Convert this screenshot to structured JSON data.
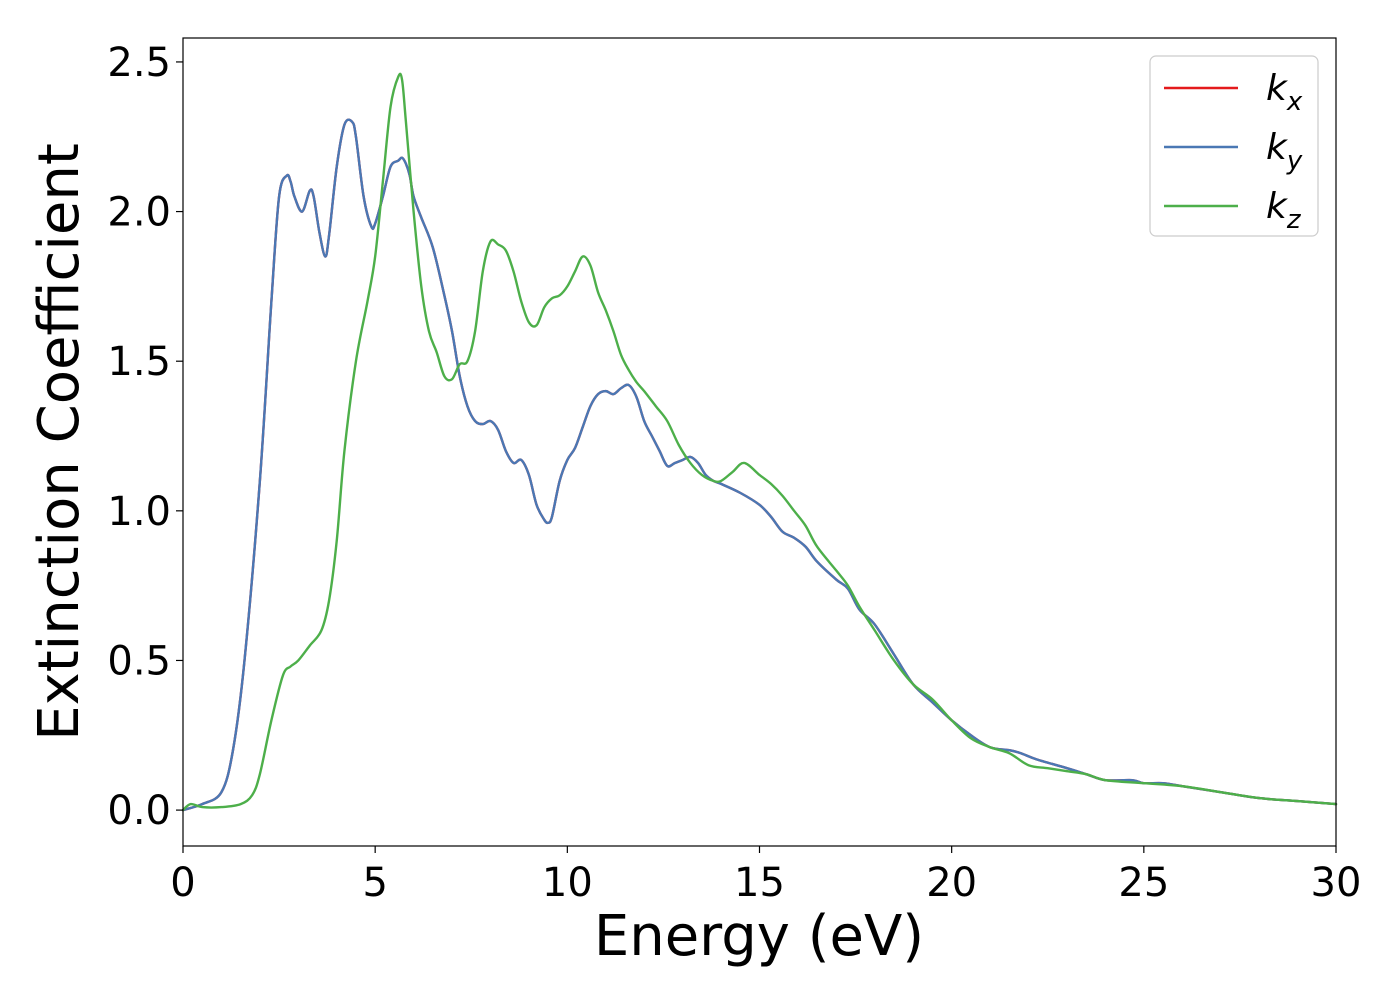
{
  "chart_data": {
    "type": "line",
    "title": "",
    "xlabel": "Energy (eV)",
    "ylabel": "Extinction Coefficient",
    "xlim": [
      0,
      30
    ],
    "ylim": [
      -0.12,
      2.58
    ],
    "xticks": [
      0,
      5,
      10,
      15,
      20,
      25,
      30
    ],
    "xtick_labels": [
      "0",
      "5",
      "10",
      "15",
      "20",
      "25",
      "30"
    ],
    "yticks": [
      0.0,
      0.5,
      1.0,
      1.5,
      2.0,
      2.5
    ],
    "ytick_labels": [
      "0.0",
      "0.5",
      "1.0",
      "1.5",
      "2.0",
      "2.5"
    ],
    "grid": false,
    "legend_position": "top-right",
    "series": [
      {
        "name": "kx",
        "label_base": "k",
        "label_sub": "x",
        "color": "#e41a1c",
        "x": [
          0,
          0.5,
          1.0,
          1.3,
          1.6,
          2.0,
          2.3,
          2.5,
          2.7,
          2.8,
          2.9,
          3.1,
          3.3,
          3.4,
          3.55,
          3.7,
          3.8,
          4.0,
          4.2,
          4.4,
          4.5,
          4.7,
          4.9,
          5.0,
          5.2,
          5.4,
          5.6,
          5.7,
          5.8,
          5.9,
          6.0,
          6.2,
          6.5,
          6.8,
          7.0,
          7.2,
          7.4,
          7.6,
          7.8,
          8.0,
          8.2,
          8.4,
          8.6,
          8.8,
          9.0,
          9.2,
          9.4,
          9.5,
          9.6,
          9.8,
          10.0,
          10.2,
          10.4,
          10.6,
          10.8,
          11.0,
          11.2,
          11.4,
          11.6,
          11.8,
          12.0,
          12.2,
          12.4,
          12.6,
          12.8,
          13.0,
          13.2,
          13.4,
          13.6,
          13.8,
          14.0,
          14.5,
          15.0,
          15.3,
          15.6,
          15.9,
          16.2,
          16.5,
          17.0,
          17.3,
          17.6,
          18.0,
          18.5,
          19.0,
          19.5,
          20.0,
          20.5,
          21.0,
          21.5,
          21.8,
          22.2,
          23.0,
          23.5,
          24.0,
          24.7,
          25.0,
          25.5,
          26.0,
          26.5,
          27.0,
          28.0,
          29.0,
          30.0
        ],
        "y": [
          0.0,
          0.02,
          0.06,
          0.2,
          0.5,
          1.1,
          1.7,
          2.05,
          2.12,
          2.1,
          2.05,
          2.0,
          2.07,
          2.05,
          1.93,
          1.85,
          1.92,
          2.15,
          2.29,
          2.3,
          2.25,
          2.05,
          1.95,
          1.96,
          2.05,
          2.15,
          2.17,
          2.18,
          2.16,
          2.12,
          2.05,
          1.98,
          1.88,
          1.72,
          1.6,
          1.45,
          1.35,
          1.3,
          1.29,
          1.3,
          1.27,
          1.2,
          1.16,
          1.17,
          1.12,
          1.02,
          0.97,
          0.96,
          0.98,
          1.1,
          1.17,
          1.21,
          1.28,
          1.35,
          1.39,
          1.4,
          1.39,
          1.41,
          1.42,
          1.38,
          1.3,
          1.25,
          1.2,
          1.15,
          1.16,
          1.17,
          1.18,
          1.16,
          1.12,
          1.1,
          1.09,
          1.06,
          1.02,
          0.98,
          0.93,
          0.91,
          0.88,
          0.83,
          0.77,
          0.74,
          0.67,
          0.62,
          0.52,
          0.42,
          0.36,
          0.3,
          0.25,
          0.21,
          0.2,
          0.19,
          0.17,
          0.14,
          0.12,
          0.1,
          0.1,
          0.09,
          0.09,
          0.08,
          0.07,
          0.06,
          0.04,
          0.03,
          0.02
        ]
      },
      {
        "name": "ky",
        "label_base": "k",
        "label_sub": "y",
        "color": "#4a78b4",
        "x": [
          0,
          0.5,
          1.0,
          1.3,
          1.6,
          2.0,
          2.3,
          2.5,
          2.7,
          2.8,
          2.9,
          3.1,
          3.3,
          3.4,
          3.55,
          3.7,
          3.8,
          4.0,
          4.2,
          4.4,
          4.5,
          4.7,
          4.9,
          5.0,
          5.2,
          5.4,
          5.6,
          5.7,
          5.8,
          5.9,
          6.0,
          6.2,
          6.5,
          6.8,
          7.0,
          7.2,
          7.4,
          7.6,
          7.8,
          8.0,
          8.2,
          8.4,
          8.6,
          8.8,
          9.0,
          9.2,
          9.4,
          9.5,
          9.6,
          9.8,
          10.0,
          10.2,
          10.4,
          10.6,
          10.8,
          11.0,
          11.2,
          11.4,
          11.6,
          11.8,
          12.0,
          12.2,
          12.4,
          12.6,
          12.8,
          13.0,
          13.2,
          13.4,
          13.6,
          13.8,
          14.0,
          14.5,
          15.0,
          15.3,
          15.6,
          15.9,
          16.2,
          16.5,
          17.0,
          17.3,
          17.6,
          18.0,
          18.5,
          19.0,
          19.5,
          20.0,
          20.5,
          21.0,
          21.5,
          21.8,
          22.2,
          23.0,
          23.5,
          24.0,
          24.7,
          25.0,
          25.5,
          26.0,
          26.5,
          27.0,
          28.0,
          29.0,
          30.0
        ],
        "y": [
          0.0,
          0.02,
          0.06,
          0.2,
          0.5,
          1.1,
          1.7,
          2.05,
          2.12,
          2.1,
          2.05,
          2.0,
          2.07,
          2.05,
          1.93,
          1.85,
          1.92,
          2.15,
          2.29,
          2.3,
          2.25,
          2.05,
          1.95,
          1.96,
          2.05,
          2.15,
          2.17,
          2.18,
          2.16,
          2.12,
          2.05,
          1.98,
          1.88,
          1.72,
          1.6,
          1.45,
          1.35,
          1.3,
          1.29,
          1.3,
          1.27,
          1.2,
          1.16,
          1.17,
          1.12,
          1.02,
          0.97,
          0.96,
          0.98,
          1.1,
          1.17,
          1.21,
          1.28,
          1.35,
          1.39,
          1.4,
          1.39,
          1.41,
          1.42,
          1.38,
          1.3,
          1.25,
          1.2,
          1.15,
          1.16,
          1.17,
          1.18,
          1.16,
          1.12,
          1.1,
          1.09,
          1.06,
          1.02,
          0.98,
          0.93,
          0.91,
          0.88,
          0.83,
          0.77,
          0.74,
          0.67,
          0.62,
          0.52,
          0.42,
          0.36,
          0.3,
          0.25,
          0.21,
          0.2,
          0.19,
          0.17,
          0.14,
          0.12,
          0.1,
          0.1,
          0.09,
          0.09,
          0.08,
          0.07,
          0.06,
          0.04,
          0.03,
          0.02
        ]
      },
      {
        "name": "kz",
        "label_base": "k",
        "label_sub": "z",
        "color": "#4daf4a",
        "x": [
          0,
          0.2,
          0.5,
          1.0,
          1.5,
          1.8,
          2.0,
          2.3,
          2.6,
          2.8,
          3.0,
          3.3,
          3.6,
          3.8,
          4.0,
          4.2,
          4.5,
          4.8,
          5.0,
          5.2,
          5.4,
          5.6,
          5.7,
          5.8,
          6.0,
          6.2,
          6.4,
          6.6,
          6.8,
          7.0,
          7.2,
          7.4,
          7.6,
          7.8,
          8.0,
          8.2,
          8.4,
          8.6,
          8.8,
          9.0,
          9.2,
          9.4,
          9.6,
          9.8,
          10.0,
          10.2,
          10.4,
          10.6,
          10.8,
          11.0,
          11.2,
          11.4,
          11.6,
          11.8,
          12.0,
          12.3,
          12.6,
          12.9,
          13.2,
          13.5,
          13.8,
          14.0,
          14.3,
          14.6,
          15.0,
          15.3,
          15.6,
          15.9,
          16.2,
          16.5,
          17.0,
          17.3,
          17.6,
          18.0,
          18.5,
          19.0,
          19.5,
          20.0,
          20.5,
          21.0,
          21.5,
          22.0,
          22.5,
          23.0,
          23.5,
          24.0,
          25.0,
          26.0,
          27.0,
          28.0,
          29.0,
          30.0
        ],
        "y": [
          0.0,
          0.02,
          0.01,
          0.01,
          0.02,
          0.05,
          0.12,
          0.3,
          0.45,
          0.48,
          0.5,
          0.55,
          0.6,
          0.7,
          0.9,
          1.2,
          1.5,
          1.7,
          1.85,
          2.1,
          2.35,
          2.45,
          2.44,
          2.3,
          2.0,
          1.75,
          1.6,
          1.53,
          1.45,
          1.44,
          1.49,
          1.5,
          1.6,
          1.8,
          1.9,
          1.89,
          1.87,
          1.8,
          1.7,
          1.63,
          1.62,
          1.68,
          1.71,
          1.72,
          1.75,
          1.8,
          1.85,
          1.82,
          1.73,
          1.67,
          1.6,
          1.52,
          1.47,
          1.43,
          1.4,
          1.35,
          1.3,
          1.22,
          1.16,
          1.12,
          1.1,
          1.1,
          1.13,
          1.16,
          1.12,
          1.09,
          1.05,
          1.0,
          0.95,
          0.88,
          0.8,
          0.75,
          0.68,
          0.6,
          0.5,
          0.42,
          0.37,
          0.3,
          0.24,
          0.21,
          0.19,
          0.15,
          0.14,
          0.13,
          0.12,
          0.1,
          0.09,
          0.08,
          0.06,
          0.04,
          0.03,
          0.02
        ]
      }
    ]
  }
}
